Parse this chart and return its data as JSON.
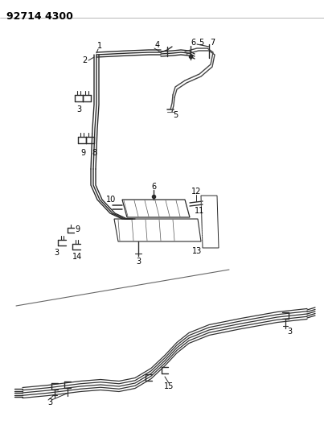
{
  "title": "92714 4300",
  "bg_color": "#ffffff",
  "line_color": "#2a2a2a",
  "text_color": "#000000",
  "title_fontsize": 9,
  "label_fontsize": 7,
  "figsize": [
    4.03,
    5.33
  ],
  "dpi": 100
}
